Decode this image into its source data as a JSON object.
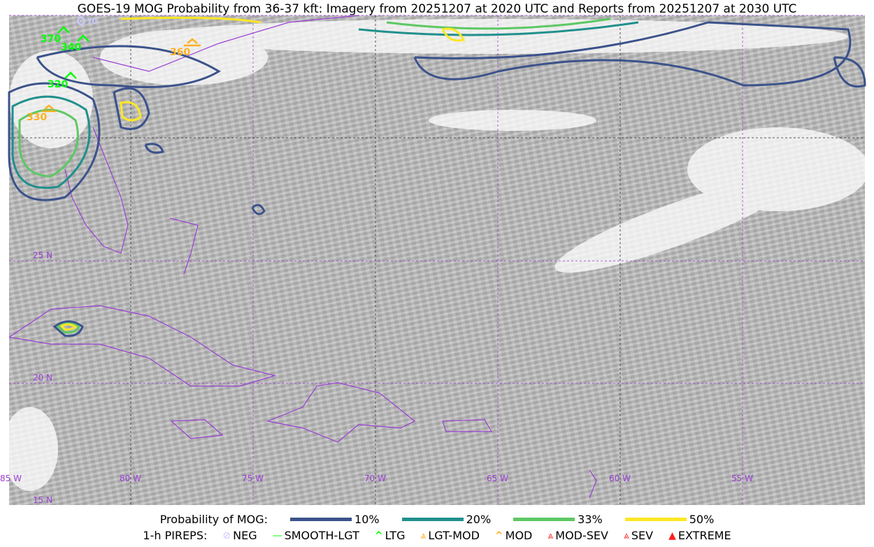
{
  "title": "GOES-19 MOG Probability from 36-37 kft: Imagery from 20251207 at 2020 UTC and Reports from 20251207 at 2030 UTC",
  "grid_labels": {
    "lon": [
      "85 W",
      "80 W",
      "75 W",
      "70 W",
      "65 W",
      "60 W",
      "55 W"
    ],
    "lat": [
      "25 N",
      "20 N",
      "15 N"
    ]
  },
  "pireps": [
    {
      "label": "370",
      "category": "LTG",
      "color": "#00ff00"
    },
    {
      "label": "340",
      "category": "LTG",
      "color": "#00ff00"
    },
    {
      "label": "320",
      "category": "LTG",
      "color": "#00ff00"
    },
    {
      "label": "360",
      "category": "LGT-MOD",
      "color": "#ffb020"
    },
    {
      "label": "330",
      "category": "LGT-MOD",
      "color": "#ffb020"
    },
    {
      "label": "?0",
      "category": "NEG",
      "color": "#c8c8ff"
    }
  ],
  "legend": {
    "prob_title": "Probability of MOG:",
    "prob": [
      {
        "label": "10%",
        "color": "#3b528b"
      },
      {
        "label": "20%",
        "color": "#21908d"
      },
      {
        "label": "33%",
        "color": "#5dc863"
      },
      {
        "label": "50%",
        "color": "#fde725"
      }
    ],
    "pirep_title": "1-h PIREPS:",
    "pirep_items": [
      {
        "label": "NEG",
        "glyph": "⊘",
        "color": "#c8c8ff"
      },
      {
        "label": "SMOOTH-LGT",
        "glyph": "—",
        "color": "#00ff00"
      },
      {
        "label": "LTG",
        "glyph": "^",
        "color": "#00ff00"
      },
      {
        "label": "LGT-MOD",
        "glyph": "⩓",
        "color": "#ffb020"
      },
      {
        "label": "MOD",
        "glyph": "^",
        "color": "#ffb020"
      },
      {
        "label": "MOD-SEV",
        "glyph": "⩓",
        "color": "#ff3030"
      },
      {
        "label": "SEV",
        "glyph": "⩓",
        "color": "#ff3030"
      },
      {
        "label": "EXTREME",
        "glyph": "▲",
        "color": "#ff2020"
      }
    ]
  },
  "colors": {
    "coastline": "#9b3fd6",
    "grid": "#9b3fd6"
  }
}
